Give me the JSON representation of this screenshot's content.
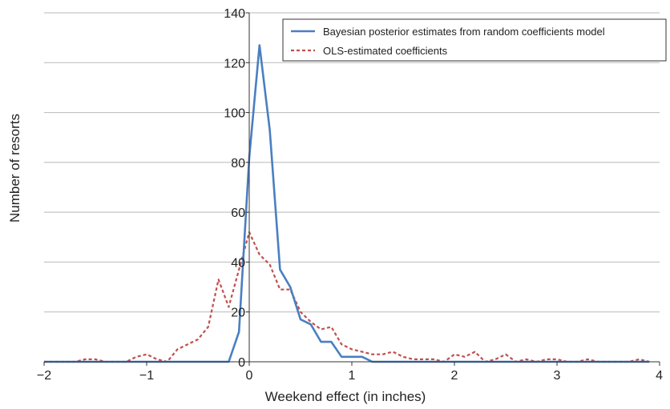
{
  "chart_data": {
    "type": "line",
    "title": "",
    "xlabel": "Weekend effect (in inches)",
    "ylabel": "Number of resorts",
    "xlim": [
      -2,
      4
    ],
    "ylim": [
      0,
      140
    ],
    "x_ticks": [
      -2,
      -1,
      0,
      1,
      2,
      3,
      4
    ],
    "x_tick_labels": [
      "−2",
      "−1",
      "0",
      "1",
      "2",
      "3",
      "4"
    ],
    "y_ticks": [
      0,
      20,
      40,
      60,
      80,
      100,
      120,
      140
    ],
    "y_tick_labels": [
      "0",
      "20",
      "40",
      "60",
      "80",
      "100",
      "120",
      "140"
    ],
    "grid": "horizontal",
    "legend_position": "top-right",
    "series": [
      {
        "name": "Bayesian posterior estimates from random coefficients model",
        "color": "#4a7fc1",
        "style": "solid",
        "x": [
          -2.0,
          -0.2,
          -0.1,
          0.0,
          0.1,
          0.2,
          0.3,
          0.4,
          0.5,
          0.6,
          0.7,
          0.8,
          0.9,
          1.0,
          1.1,
          1.2,
          3.9
        ],
        "values": [
          0,
          0,
          12,
          82,
          127,
          93,
          37,
          30,
          17,
          15,
          8,
          8,
          2,
          2,
          2,
          0,
          0
        ]
      },
      {
        "name": "OLS-estimated coefficients",
        "color": "#c0504d",
        "style": "dashed",
        "x": [
          -2.0,
          -1.9,
          -1.8,
          -1.7,
          -1.6,
          -1.5,
          -1.4,
          -1.3,
          -1.2,
          -1.1,
          -1.0,
          -0.9,
          -0.8,
          -0.7,
          -0.6,
          -0.5,
          -0.4,
          -0.3,
          -0.2,
          -0.1,
          0.0,
          0.1,
          0.2,
          0.3,
          0.4,
          0.5,
          0.6,
          0.7,
          0.8,
          0.9,
          1.0,
          1.1,
          1.2,
          1.3,
          1.4,
          1.5,
          1.6,
          1.7,
          1.8,
          1.9,
          2.0,
          2.1,
          2.2,
          2.3,
          2.4,
          2.5,
          2.6,
          2.7,
          2.8,
          2.9,
          3.0,
          3.1,
          3.2,
          3.3,
          3.4,
          3.5,
          3.6,
          3.7,
          3.8,
          3.9
        ],
        "values": [
          0,
          0,
          0,
          0,
          1,
          1,
          0,
          0,
          0,
          2,
          3,
          1,
          0,
          5,
          7,
          9,
          14,
          33,
          22,
          37,
          52,
          43,
          39,
          29,
          29,
          20,
          16,
          13,
          14,
          7,
          5,
          4,
          3,
          3,
          4,
          2,
          1,
          1,
          1,
          0,
          3,
          2,
          4,
          0,
          1,
          3,
          0,
          1,
          0,
          1,
          1,
          0,
          0,
          1,
          0,
          0,
          0,
          0,
          1,
          0
        ]
      }
    ]
  }
}
